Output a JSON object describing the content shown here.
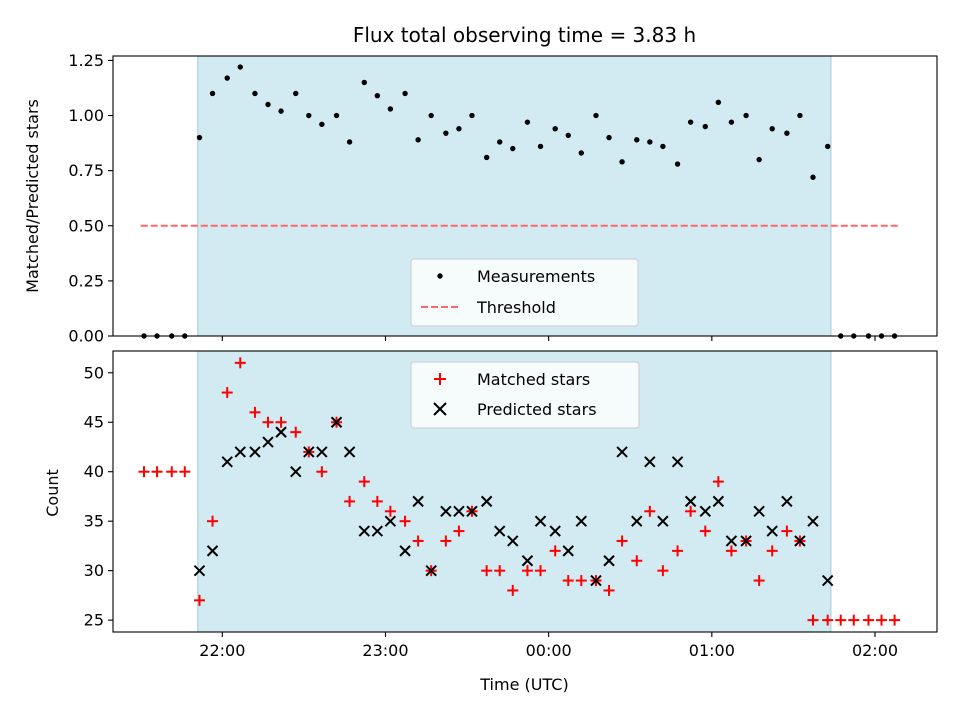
{
  "chart_data": [
    {
      "type": "scatter",
      "title": "Flux total observing time = 3.83 h",
      "ylabel": "Matched/Predicted stars",
      "ylim": [
        0.0,
        1.27
      ],
      "yticks": [
        "0.00",
        "0.25",
        "0.50",
        "0.75",
        "1.00",
        "1.25"
      ],
      "shaded_interval_hours": [
        21.85,
        25.73
      ],
      "shade_color": "#add8e6",
      "threshold": {
        "name": "Threshold",
        "value": 0.5,
        "x_range_hours": [
          21.5,
          26.15
        ],
        "color": "#ff6666"
      },
      "legend": {
        "position": "lower center",
        "entries": [
          "Measurements",
          "Threshold"
        ]
      },
      "series": [
        {
          "name": "Measurements",
          "color": "#000000",
          "points": [
            [
              21.52,
              0.0
            ],
            [
              21.6,
              0.0
            ],
            [
              21.69,
              0.0
            ],
            [
              21.77,
              0.0
            ],
            [
              21.86,
              0.9
            ],
            [
              21.94,
              1.1
            ],
            [
              22.03,
              1.17
            ],
            [
              22.11,
              1.22
            ],
            [
              22.2,
              1.1
            ],
            [
              22.28,
              1.05
            ],
            [
              22.36,
              1.02
            ],
            [
              22.45,
              1.1
            ],
            [
              22.53,
              1.0
            ],
            [
              22.61,
              0.96
            ],
            [
              22.7,
              1.0
            ],
            [
              22.78,
              0.88
            ],
            [
              22.87,
              1.15
            ],
            [
              22.95,
              1.09
            ],
            [
              23.03,
              1.03
            ],
            [
              23.12,
              1.1
            ],
            [
              23.2,
              0.89
            ],
            [
              23.28,
              1.0
            ],
            [
              23.37,
              0.92
            ],
            [
              23.45,
              0.94
            ],
            [
              23.53,
              1.0
            ],
            [
              23.62,
              0.81
            ],
            [
              23.7,
              0.88
            ],
            [
              23.78,
              0.85
            ],
            [
              23.87,
              0.97
            ],
            [
              23.95,
              0.86
            ],
            [
              24.04,
              0.94
            ],
            [
              24.12,
              0.91
            ],
            [
              24.2,
              0.83
            ],
            [
              24.29,
              1.0
            ],
            [
              24.37,
              0.9
            ],
            [
              24.45,
              0.79
            ],
            [
              24.54,
              0.89
            ],
            [
              24.62,
              0.88
            ],
            [
              24.7,
              0.86
            ],
            [
              24.79,
              0.78
            ],
            [
              24.87,
              0.97
            ],
            [
              24.96,
              0.95
            ],
            [
              25.04,
              1.06
            ],
            [
              25.12,
              0.97
            ],
            [
              25.21,
              1.0
            ],
            [
              25.29,
              0.8
            ],
            [
              25.37,
              0.94
            ],
            [
              25.46,
              0.92
            ],
            [
              25.54,
              1.0
            ],
            [
              25.62,
              0.72
            ],
            [
              25.71,
              0.86
            ],
            [
              25.79,
              0.0
            ],
            [
              25.87,
              0.0
            ],
            [
              25.96,
              0.0
            ],
            [
              26.04,
              0.0
            ],
            [
              26.12,
              0.0
            ]
          ]
        }
      ]
    },
    {
      "type": "scatter",
      "xlabel": "Time (UTC)",
      "ylabel": "Count",
      "ylim": [
        23.8,
        52.2
      ],
      "yticks": [
        "25",
        "30",
        "35",
        "40",
        "45",
        "50"
      ],
      "xlim_hours": [
        21.33,
        26.38
      ],
      "xticks": [
        {
          "value": 22,
          "label": "22:00"
        },
        {
          "value": 23,
          "label": "23:00"
        },
        {
          "value": 24,
          "label": "00:00"
        },
        {
          "value": 25,
          "label": "01:00"
        },
        {
          "value": 26,
          "label": "02:00"
        }
      ],
      "shaded_interval_hours": [
        21.85,
        25.73
      ],
      "shade_color": "#add8e6",
      "legend": {
        "position": "upper center",
        "entries": [
          "Matched stars",
          "Predicted stars"
        ]
      },
      "series": [
        {
          "name": "Matched stars",
          "marker": "+",
          "color": "#ff0000",
          "points": [
            [
              21.52,
              40
            ],
            [
              21.6,
              40
            ],
            [
              21.69,
              40
            ],
            [
              21.77,
              40
            ],
            [
              21.86,
              27
            ],
            [
              21.94,
              35
            ],
            [
              22.03,
              48
            ],
            [
              22.11,
              51
            ],
            [
              22.2,
              46
            ],
            [
              22.28,
              45
            ],
            [
              22.36,
              45
            ],
            [
              22.45,
              44
            ],
            [
              22.53,
              42
            ],
            [
              22.61,
              40
            ],
            [
              22.7,
              45
            ],
            [
              22.78,
              37
            ],
            [
              22.87,
              39
            ],
            [
              22.95,
              37
            ],
            [
              23.03,
              36
            ],
            [
              23.12,
              35
            ],
            [
              23.2,
              33
            ],
            [
              23.28,
              30
            ],
            [
              23.37,
              33
            ],
            [
              23.45,
              34
            ],
            [
              23.53,
              36
            ],
            [
              23.62,
              30
            ],
            [
              23.7,
              30
            ],
            [
              23.78,
              28
            ],
            [
              23.87,
              30
            ],
            [
              23.95,
              30
            ],
            [
              24.04,
              32
            ],
            [
              24.12,
              29
            ],
            [
              24.2,
              29
            ],
            [
              24.29,
              29
            ],
            [
              24.37,
              28
            ],
            [
              24.45,
              33
            ],
            [
              24.54,
              31
            ],
            [
              24.62,
              36
            ],
            [
              24.7,
              30
            ],
            [
              24.79,
              32
            ],
            [
              24.87,
              36
            ],
            [
              24.96,
              34
            ],
            [
              25.04,
              39
            ],
            [
              25.12,
              32
            ],
            [
              25.21,
              33
            ],
            [
              25.29,
              29
            ],
            [
              25.37,
              32
            ],
            [
              25.46,
              34
            ],
            [
              25.54,
              33
            ],
            [
              25.62,
              25
            ],
            [
              25.71,
              25
            ],
            [
              25.79,
              25
            ],
            [
              25.87,
              25
            ],
            [
              25.96,
              25
            ],
            [
              26.04,
              25
            ],
            [
              26.12,
              25
            ]
          ]
        },
        {
          "name": "Predicted stars",
          "marker": "x",
          "color": "#000000",
          "points": [
            [
              21.86,
              30
            ],
            [
              21.94,
              32
            ],
            [
              22.03,
              41
            ],
            [
              22.11,
              42
            ],
            [
              22.2,
              42
            ],
            [
              22.28,
              43
            ],
            [
              22.36,
              44
            ],
            [
              22.45,
              40
            ],
            [
              22.53,
              42
            ],
            [
              22.61,
              42
            ],
            [
              22.7,
              45
            ],
            [
              22.78,
              42
            ],
            [
              22.87,
              34
            ],
            [
              22.95,
              34
            ],
            [
              23.03,
              35
            ],
            [
              23.12,
              32
            ],
            [
              23.2,
              37
            ],
            [
              23.28,
              30
            ],
            [
              23.37,
              36
            ],
            [
              23.45,
              36
            ],
            [
              23.53,
              36
            ],
            [
              23.62,
              37
            ],
            [
              23.7,
              34
            ],
            [
              23.78,
              33
            ],
            [
              23.87,
              31
            ],
            [
              23.95,
              35
            ],
            [
              24.04,
              34
            ],
            [
              24.12,
              32
            ],
            [
              24.2,
              35
            ],
            [
              24.29,
              29
            ],
            [
              24.37,
              31
            ],
            [
              24.45,
              42
            ],
            [
              24.54,
              35
            ],
            [
              24.62,
              41
            ],
            [
              24.7,
              35
            ],
            [
              24.79,
              41
            ],
            [
              24.87,
              37
            ],
            [
              24.96,
              36
            ],
            [
              25.04,
              37
            ],
            [
              25.12,
              33
            ],
            [
              25.21,
              33
            ],
            [
              25.29,
              36
            ],
            [
              25.37,
              34
            ],
            [
              25.46,
              37
            ],
            [
              25.54,
              33
            ],
            [
              25.62,
              35
            ],
            [
              25.71,
              29
            ]
          ]
        }
      ]
    }
  ]
}
